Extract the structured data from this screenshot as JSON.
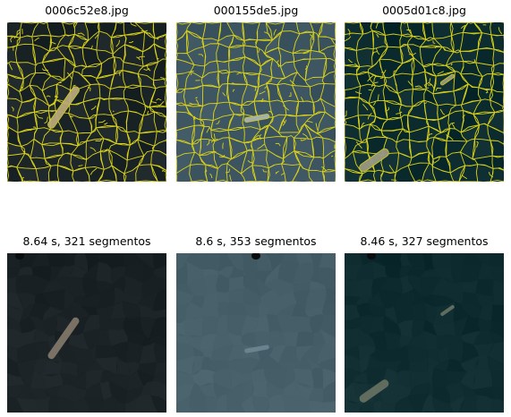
{
  "panels": [
    {
      "title": "0006c52e8.jpg",
      "image": "superpixel-boundary-overlay",
      "base_color": "#1a2326",
      "boundary_color": "#d9d21a",
      "ship_color": "#b9a97a"
    },
    {
      "title": "000155de5.jpg",
      "image": "superpixel-boundary-overlay",
      "base_color": "#3c5560",
      "boundary_color": "#d9d21a",
      "ship_color": "#a8b4b0"
    },
    {
      "title": "0005d01c8.jpg",
      "image": "superpixel-boundary-overlay",
      "base_color": "#0b2a2d",
      "boundary_color": "#d9d21a",
      "ship_color": "#9a9a82"
    },
    {
      "title": "8.64 s, 321 segmentos",
      "image": "superpixel-mean-color",
      "base_color": "#192125",
      "ship_color": "#8c8070"
    },
    {
      "title": "8.6 s, 353 segmentos",
      "image": "superpixel-mean-color",
      "base_color": "#455d67",
      "ship_color": "#6e8a94"
    },
    {
      "title": "8.46 s, 327 segmentos",
      "image": "superpixel-mean-color",
      "base_color": "#0d2b2e",
      "ship_color": "#6e7766"
    }
  ]
}
